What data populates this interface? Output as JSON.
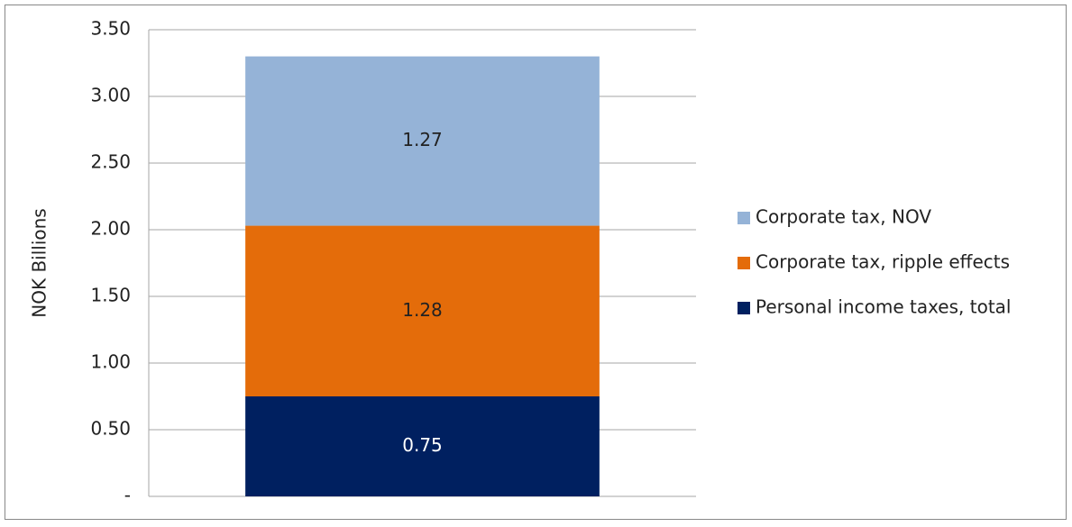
{
  "chart_data": {
    "type": "stacked_bar",
    "y_label": "NOK Billions",
    "categories": [
      null
    ],
    "series": [
      {
        "name": "Personal income taxes, total",
        "color": "#002060",
        "values": [
          0.75
        ]
      },
      {
        "name": "Corporate tax, ripple effects",
        "color": "#e46c0a",
        "values": [
          1.28
        ]
      },
      {
        "name": "Corporate tax, NOV",
        "color": "#95b3d7",
        "values": [
          1.27
        ]
      }
    ],
    "ylim": [
      0,
      3.5
    ],
    "yticks": [
      {
        "value": 0,
        "label": "-"
      },
      {
        "value": 0.5,
        "label": "0.50"
      },
      {
        "value": 1,
        "label": "1.00"
      },
      {
        "value": 1.5,
        "label": "1.50"
      },
      {
        "value": 2,
        "label": "2.00"
      },
      {
        "value": 2.5,
        "label": "2.50"
      },
      {
        "value": 3,
        "label": "3.00"
      },
      {
        "value": 3.5,
        "label": "3.50"
      }
    ],
    "grid": true,
    "legend": "right"
  }
}
